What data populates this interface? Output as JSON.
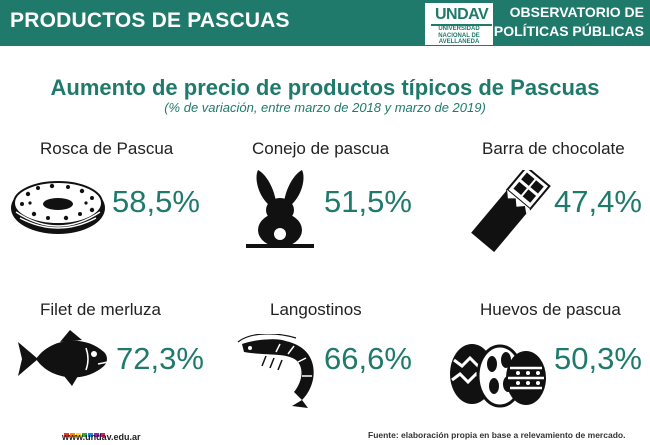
{
  "header": {
    "title": "PRODUCTOS DE PASCUAS",
    "logo_mark": "UNDAV",
    "logo_lines": [
      "UNIVERSIDAD",
      "NACIONAL DE",
      "AVELLANEDA"
    ],
    "observatorio_line1": "OBSERVATORIO DE",
    "observatorio_line2": "POLÍTICAS PÚBLICAS"
  },
  "title": "Aumento de precio de productos típicos de Pascuas",
  "subtitle": "(% de variación, entre marzo de 2018 y marzo de 2019)",
  "items": [
    {
      "label": "Rosca de Pascua",
      "value": "58,5%",
      "icon": "rosca-icon"
    },
    {
      "label": "Conejo de pascua",
      "value": "51,5%",
      "icon": "rabbit-icon"
    },
    {
      "label": "Barra de chocolate",
      "value": "47,4%",
      "icon": "chocolate-bar-icon"
    },
    {
      "label": "Filet de merluza",
      "value": "72,3%",
      "icon": "fish-icon"
    },
    {
      "label": "Langostinos",
      "value": "66,6%",
      "icon": "shrimp-icon"
    },
    {
      "label": "Huevos de pascua",
      "value": "50,3%",
      "icon": "easter-eggs-icon"
    }
  ],
  "footer": {
    "url": "www.undav.edu.ar",
    "source": "Fuente: elaboración propia en base a relevamiento de mercado."
  },
  "colors": {
    "brand": "#1f7a6c",
    "dots": [
      "#e53935",
      "#fb8c00",
      "#fdd835",
      "#43a047",
      "#1e88e5",
      "#8e24aa",
      "#d81b60"
    ]
  }
}
